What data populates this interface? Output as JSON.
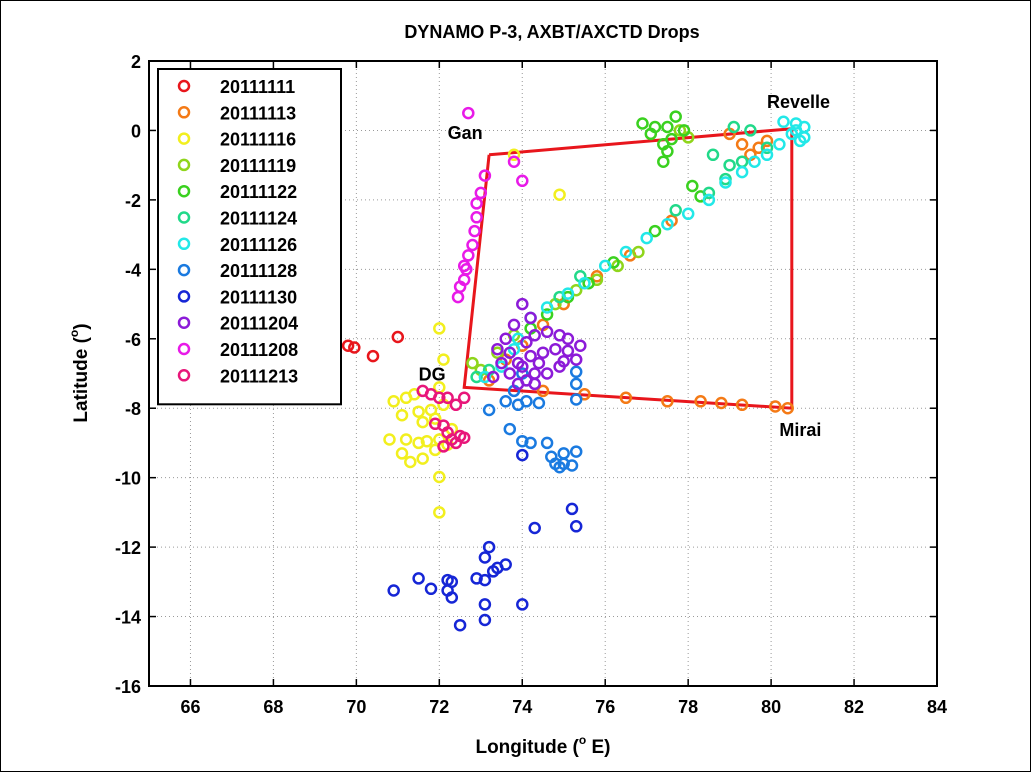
{
  "chart_data": {
    "type": "scatter",
    "title": "DYNAMO P-3, AXBT/AXCTD Drops",
    "xlabel": "Longitude (",
    "xlabel_sup": "o",
    "xlabel_suffix": " E)",
    "ylabel": "Latitude (",
    "ylabel_sup": "o",
    "ylabel_suffix": ")",
    "xlim": [
      65,
      84
    ],
    "ylim": [
      -16,
      2
    ],
    "xticks": [
      66,
      68,
      70,
      72,
      74,
      76,
      78,
      80,
      82,
      84
    ],
    "yticks": [
      2,
      0,
      -2,
      -4,
      -6,
      -8,
      -10,
      -12,
      -14,
      -16
    ],
    "grid": true,
    "legend_position": "upper-left",
    "series": [
      {
        "name": "20111111",
        "color": "#e8161c",
        "points": [
          [
            69.8,
            -6.2
          ],
          [
            69.95,
            -6.25
          ],
          [
            70.4,
            -6.5
          ],
          [
            71.0,
            -5.95
          ]
        ]
      },
      {
        "name": "20111113",
        "color": "#f47a16",
        "points": [
          [
            79.0,
            -0.1
          ],
          [
            79.3,
            -0.4
          ],
          [
            79.5,
            -0.7
          ],
          [
            79.7,
            -0.5
          ],
          [
            79.9,
            -0.3
          ],
          [
            77.6,
            -2.6
          ],
          [
            76.6,
            -3.6
          ],
          [
            75.8,
            -4.2
          ],
          [
            75.0,
            -5.0
          ],
          [
            74.5,
            -5.6
          ],
          [
            74.0,
            -6.2
          ],
          [
            73.6,
            -6.6
          ],
          [
            73.2,
            -7.2
          ],
          [
            74.5,
            -7.5
          ],
          [
            75.5,
            -7.6
          ],
          [
            76.5,
            -7.7
          ],
          [
            77.5,
            -7.8
          ],
          [
            78.3,
            -7.8
          ],
          [
            78.8,
            -7.85
          ],
          [
            79.3,
            -7.9
          ],
          [
            80.1,
            -7.95
          ],
          [
            80.4,
            -8.0
          ]
        ]
      },
      {
        "name": "20111116",
        "color": "#f2ef1e",
        "points": [
          [
            72.0,
            -5.7
          ],
          [
            72.1,
            -6.6
          ],
          [
            73.8,
            -0.7
          ],
          [
            74.9,
            -1.85
          ],
          [
            70.9,
            -7.8
          ],
          [
            71.2,
            -7.7
          ],
          [
            71.4,
            -7.6
          ],
          [
            71.1,
            -8.2
          ],
          [
            71.5,
            -8.1
          ],
          [
            71.8,
            -8.05
          ],
          [
            71.6,
            -8.4
          ],
          [
            71.9,
            -8.3
          ],
          [
            70.8,
            -8.9
          ],
          [
            71.2,
            -8.9
          ],
          [
            71.5,
            -9.0
          ],
          [
            71.7,
            -8.95
          ],
          [
            72.0,
            -8.9
          ],
          [
            71.1,
            -9.3
          ],
          [
            71.3,
            -9.55
          ],
          [
            71.6,
            -9.45
          ],
          [
            71.9,
            -9.2
          ],
          [
            72.2,
            -9.05
          ],
          [
            72.0,
            -9.98
          ],
          [
            72.0,
            -11.0
          ],
          [
            72.3,
            -8.6
          ],
          [
            72.1,
            -7.9
          ],
          [
            72.0,
            -7.4
          ]
        ]
      },
      {
        "name": "20111119",
        "color": "#8fd51b",
        "points": [
          [
            77.8,
            -0.0
          ],
          [
            78.0,
            -0.2
          ],
          [
            73.4,
            -6.4
          ],
          [
            73.8,
            -5.9
          ],
          [
            74.8,
            -5.0
          ],
          [
            75.3,
            -4.6
          ],
          [
            75.8,
            -4.3
          ],
          [
            76.3,
            -3.9
          ],
          [
            76.8,
            -3.5
          ],
          [
            72.8,
            -6.7
          ],
          [
            73.0,
            -6.9
          ]
        ]
      },
      {
        "name": "20111122",
        "color": "#3ad11f",
        "points": [
          [
            76.9,
            0.2
          ],
          [
            77.2,
            0.1
          ],
          [
            77.5,
            0.1
          ],
          [
            77.7,
            0.4
          ],
          [
            77.9,
            0.0
          ],
          [
            77.4,
            -0.4
          ],
          [
            77.5,
            -0.6
          ],
          [
            77.4,
            -0.9
          ],
          [
            77.1,
            -0.1
          ],
          [
            77.6,
            -0.25
          ],
          [
            78.1,
            -1.6
          ],
          [
            78.3,
            -1.9
          ],
          [
            77.2,
            -2.9
          ],
          [
            76.2,
            -3.8
          ],
          [
            75.6,
            -4.4
          ],
          [
            75.1,
            -4.8
          ],
          [
            74.6,
            -5.3
          ],
          [
            74.2,
            -5.7
          ]
        ]
      },
      {
        "name": "20111124",
        "color": "#21d989",
        "points": [
          [
            78.6,
            -0.7
          ],
          [
            79.0,
            -1.0
          ],
          [
            79.3,
            -0.9
          ],
          [
            78.9,
            -1.4
          ],
          [
            78.5,
            -1.8
          ],
          [
            79.9,
            -0.5
          ],
          [
            79.1,
            0.1
          ],
          [
            79.5,
            0.0
          ],
          [
            77.7,
            -2.3
          ],
          [
            75.4,
            -4.2
          ],
          [
            74.9,
            -4.8
          ],
          [
            73.2,
            -6.9
          ],
          [
            72.9,
            -7.1
          ]
        ]
      },
      {
        "name": "20111126",
        "color": "#22e8e8",
        "points": [
          [
            80.3,
            0.25
          ],
          [
            80.6,
            0.2
          ],
          [
            80.8,
            0.1
          ],
          [
            80.5,
            -0.1
          ],
          [
            80.7,
            -0.3
          ],
          [
            80.2,
            -0.4
          ],
          [
            79.9,
            -0.7
          ],
          [
            80.6,
            0.0
          ],
          [
            80.8,
            -0.2
          ],
          [
            79.6,
            -0.9
          ],
          [
            79.3,
            -1.2
          ],
          [
            78.9,
            -1.5
          ],
          [
            78.5,
            -2.0
          ],
          [
            78.0,
            -2.4
          ],
          [
            77.5,
            -2.7
          ],
          [
            77.0,
            -3.1
          ],
          [
            76.5,
            -3.5
          ],
          [
            76.0,
            -3.9
          ],
          [
            75.5,
            -4.4
          ],
          [
            75.1,
            -4.7
          ],
          [
            74.6,
            -5.1
          ],
          [
            74.2,
            -5.4
          ],
          [
            73.9,
            -6.0
          ],
          [
            73.8,
            -6.3
          ],
          [
            73.5,
            -6.8
          ],
          [
            73.1,
            -7.1
          ]
        ]
      },
      {
        "name": "20111128",
        "color": "#1a7ae0",
        "points": [
          [
            75.3,
            -6.95
          ],
          [
            75.3,
            -7.3
          ],
          [
            75.3,
            -7.75
          ],
          [
            74.0,
            -7.0
          ],
          [
            73.8,
            -7.5
          ],
          [
            73.6,
            -7.8
          ],
          [
            73.9,
            -7.9
          ],
          [
            74.1,
            -7.8
          ],
          [
            74.4,
            -7.85
          ],
          [
            73.2,
            -8.05
          ],
          [
            73.7,
            -8.6
          ],
          [
            74.0,
            -8.95
          ],
          [
            74.2,
            -9.0
          ],
          [
            74.6,
            -9.0
          ],
          [
            74.8,
            -9.6
          ],
          [
            75.0,
            -9.6
          ],
          [
            75.2,
            -9.65
          ],
          [
            75.0,
            -9.3
          ],
          [
            75.3,
            -9.25
          ],
          [
            74.7,
            -9.4
          ],
          [
            74.9,
            -9.7
          ]
        ]
      },
      {
        "name": "20111130",
        "color": "#1626d6",
        "points": [
          [
            73.2,
            -12.0
          ],
          [
            73.1,
            -12.3
          ],
          [
            73.4,
            -12.6
          ],
          [
            73.6,
            -12.5
          ],
          [
            73.3,
            -12.7
          ],
          [
            72.9,
            -12.9
          ],
          [
            73.1,
            -12.95
          ],
          [
            72.2,
            -12.95
          ],
          [
            72.3,
            -13.0
          ],
          [
            72.2,
            -13.25
          ],
          [
            72.3,
            -13.45
          ],
          [
            71.5,
            -12.9
          ],
          [
            71.8,
            -13.2
          ],
          [
            70.9,
            -13.25
          ],
          [
            73.1,
            -13.65
          ],
          [
            74.0,
            -13.65
          ],
          [
            73.1,
            -14.1
          ],
          [
            72.5,
            -14.25
          ],
          [
            74.0,
            -9.35
          ],
          [
            75.2,
            -10.9
          ],
          [
            75.3,
            -11.4
          ],
          [
            74.3,
            -11.45
          ]
        ]
      },
      {
        "name": "20111204",
        "color": "#8c1bd8",
        "points": [
          [
            74.0,
            -5.0
          ],
          [
            74.2,
            -5.4
          ],
          [
            73.8,
            -5.6
          ],
          [
            74.3,
            -5.9
          ],
          [
            74.6,
            -5.8
          ],
          [
            74.9,
            -5.9
          ],
          [
            75.1,
            -6.0
          ],
          [
            74.1,
            -6.1
          ],
          [
            73.6,
            -6.0
          ],
          [
            73.4,
            -6.3
          ],
          [
            73.7,
            -6.4
          ],
          [
            74.2,
            -6.5
          ],
          [
            74.5,
            -6.4
          ],
          [
            74.8,
            -6.3
          ],
          [
            75.1,
            -6.35
          ],
          [
            75.4,
            -6.2
          ],
          [
            75.3,
            -6.6
          ],
          [
            74.0,
            -6.8
          ],
          [
            73.7,
            -7.0
          ],
          [
            74.3,
            -7.0
          ],
          [
            74.6,
            -7.0
          ],
          [
            74.9,
            -6.8
          ],
          [
            75.0,
            -6.65
          ],
          [
            73.9,
            -7.3
          ],
          [
            74.1,
            -7.2
          ],
          [
            74.3,
            -7.3
          ],
          [
            73.3,
            -7.1
          ],
          [
            73.5,
            -6.7
          ],
          [
            73.9,
            -6.7
          ],
          [
            74.4,
            -6.7
          ]
        ]
      },
      {
        "name": "20111208",
        "color": "#e81ae8",
        "points": [
          [
            72.7,
            0.5
          ],
          [
            73.8,
            -0.9
          ],
          [
            74.0,
            -1.45
          ],
          [
            73.1,
            -1.3
          ],
          [
            73.0,
            -1.8
          ],
          [
            72.9,
            -2.1
          ],
          [
            72.9,
            -2.5
          ],
          [
            72.85,
            -2.9
          ],
          [
            72.8,
            -3.3
          ],
          [
            72.7,
            -3.6
          ],
          [
            72.65,
            -4.0
          ],
          [
            72.6,
            -4.3
          ],
          [
            72.5,
            -4.5
          ],
          [
            72.45,
            -4.8
          ],
          [
            72.6,
            -3.9
          ]
        ]
      },
      {
        "name": "20111213",
        "color": "#e8167a",
        "points": [
          [
            71.6,
            -7.5
          ],
          [
            71.8,
            -7.6
          ],
          [
            72.0,
            -7.7
          ],
          [
            72.2,
            -7.7
          ],
          [
            72.6,
            -7.7
          ],
          [
            72.4,
            -7.9
          ],
          [
            71.9,
            -8.45
          ],
          [
            72.1,
            -8.5
          ],
          [
            72.2,
            -8.7
          ],
          [
            72.3,
            -8.9
          ],
          [
            72.5,
            -8.8
          ],
          [
            72.4,
            -9.0
          ],
          [
            72.1,
            -9.1
          ],
          [
            72.6,
            -8.85
          ]
        ]
      }
    ],
    "box": [
      [
        73.2,
        -0.7
      ],
      [
        80.5,
        0.05
      ],
      [
        80.5,
        -8.0
      ],
      [
        72.6,
        -7.4
      ],
      [
        73.2,
        -0.7
      ]
    ],
    "box_color": "#e8161c",
    "annotations": [
      {
        "text": "Revelle",
        "x": 79.9,
        "y": 0.65
      },
      {
        "text": "Gan",
        "x": 72.2,
        "y": -0.25
      },
      {
        "text": "DG",
        "x": 71.5,
        "y": -7.2
      },
      {
        "text": "Mirai",
        "x": 80.2,
        "y": -8.8
      }
    ]
  }
}
